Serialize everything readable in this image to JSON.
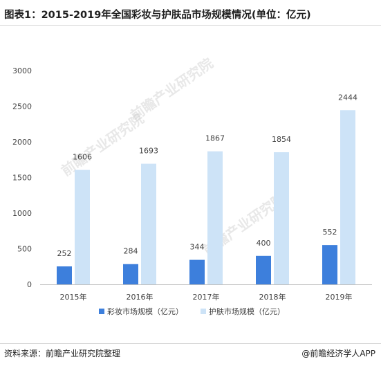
{
  "title": "图表1：2015-2019年全国彩妆与护肤品市场规模情况(单位：亿元)",
  "source": "资料来源：前瞻产业研究院整理",
  "credit": "@前瞻经济学人APP",
  "watermark": "前瞻产业研究院",
  "colors": {
    "makeup": "#3d7fdc",
    "skincare": "#cde3f7",
    "axis": "#bfbfbf",
    "text": "#404040"
  },
  "chart_data": {
    "type": "bar",
    "categories": [
      "2015年",
      "2016年",
      "2017年",
      "2018年",
      "2019年"
    ],
    "series": [
      {
        "name": "彩妆市场规模（亿元）",
        "values": [
          252,
          284,
          344,
          400,
          552
        ]
      },
      {
        "name": "护肤市场规模（亿元）",
        "values": [
          1606,
          1693,
          1867,
          1854,
          2444
        ]
      }
    ],
    "ylim": [
      0,
      3000
    ],
    "yticks": [
      0,
      500,
      1000,
      1500,
      2000,
      2500,
      3000
    ],
    "grid": false,
    "legend": "bottom"
  }
}
